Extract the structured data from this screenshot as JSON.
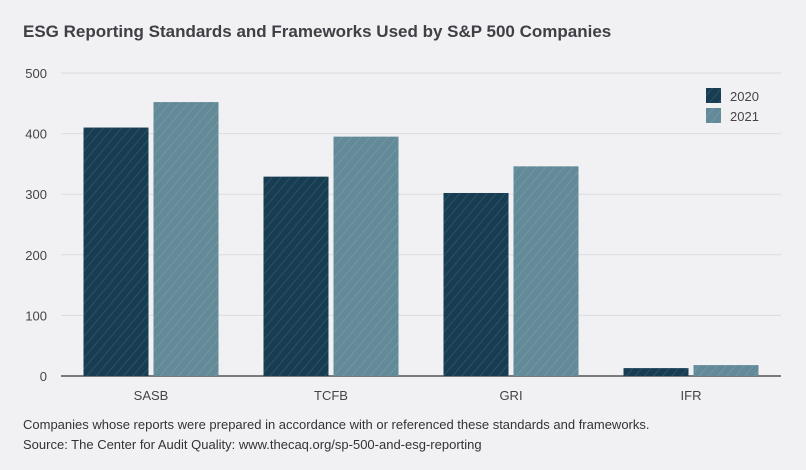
{
  "chart_data": {
    "type": "bar",
    "title": "ESG Reporting Standards and Frameworks Used by S&P 500 Companies",
    "categories": [
      "SASB",
      "TCFB",
      "GRI",
      "IFR"
    ],
    "series": [
      {
        "name": "2020",
        "values": [
          410,
          329,
          302,
          13
        ],
        "color": "#173d52"
      },
      {
        "name": "2021",
        "values": [
          452,
          395,
          346,
          18
        ],
        "color": "#638a98"
      }
    ],
    "ylim": [
      0,
      500
    ],
    "yticks": [
      0,
      100,
      200,
      300,
      400,
      500
    ],
    "grid": true,
    "legend": "top-right",
    "xlabel": "",
    "ylabel": ""
  },
  "notes": {
    "caption": "Companies whose reports were prepared in accordance with or referenced these standards and frameworks.",
    "source": "Source: The Center for Audit Quality: www.thecaq.org/sp-500-and-esg-reporting"
  }
}
